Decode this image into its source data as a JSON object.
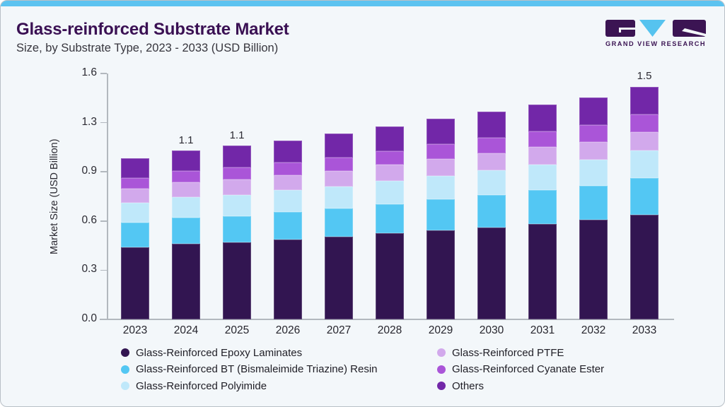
{
  "header": {
    "title": "Glass-reinforced Substrate Market",
    "subtitle": "Size, by Substrate Type, 2023 - 2033 (USD Billion)"
  },
  "logo": {
    "wordmark": "GRAND VIEW RESEARCH",
    "mark_colors": {
      "blocks": "#3b1453",
      "triangle": "#56c3ef"
    }
  },
  "colors": {
    "card_background": "#f3f7fa",
    "accent_bar": "#5cc3f0",
    "title_text": "#3a1053",
    "axis_line": "#b2b8be",
    "tick_text": "#2b2a32"
  },
  "chart_data": {
    "type": "bar",
    "stacked": true,
    "title": "Glass-reinforced Substrate Market Size, by Substrate Type, 2023 - 2033 (USD Billion)",
    "xlabel": "",
    "ylabel": "Market Size (USD Billion)",
    "ylim": [
      0,
      1.6
    ],
    "ytick_labels": [
      "0.0",
      "0.3",
      "0.6",
      "0.9",
      "1.3",
      "1.6"
    ],
    "grid": false,
    "legend_position": "bottom",
    "categories": [
      "2023",
      "2024",
      "2025",
      "2026",
      "2027",
      "2028",
      "2029",
      "2030",
      "2031",
      "2032",
      "2033"
    ],
    "bar_total_labels": [
      "",
      "1.1",
      "1.1",
      "",
      "",
      "",
      "",
      "",
      "",
      "",
      "1.5"
    ],
    "series": [
      {
        "name": "Glass-Reinforced Epoxy Laminates",
        "color": "#321551",
        "values": [
          0.47,
          0.49,
          0.5,
          0.52,
          0.54,
          0.56,
          0.58,
          0.6,
          0.62,
          0.65,
          0.68
        ]
      },
      {
        "name": "Glass-Reinforced BT (Bismaleimide Triazine) Resin",
        "color": "#53c7f3",
        "values": [
          0.16,
          0.17,
          0.17,
          0.18,
          0.18,
          0.19,
          0.2,
          0.21,
          0.22,
          0.22,
          0.24
        ]
      },
      {
        "name": "Glass-Reinforced Polyimide",
        "color": "#bfe8fa",
        "values": [
          0.13,
          0.135,
          0.14,
          0.14,
          0.145,
          0.15,
          0.155,
          0.16,
          0.165,
          0.17,
          0.18
        ]
      },
      {
        "name": "Glass-Reinforced PTFE",
        "color": "#d2a9ec",
        "values": [
          0.09,
          0.095,
          0.1,
          0.1,
          0.1,
          0.105,
          0.11,
          0.11,
          0.115,
          0.115,
          0.12
        ]
      },
      {
        "name": "Glass-Reinforced Cyanate Ester",
        "color": "#aa55d8",
        "values": [
          0.07,
          0.075,
          0.08,
          0.08,
          0.09,
          0.09,
          0.095,
          0.1,
          0.105,
          0.11,
          0.115
        ]
      },
      {
        "name": "Others",
        "color": "#7227a8",
        "values": [
          0.13,
          0.135,
          0.14,
          0.145,
          0.155,
          0.16,
          0.165,
          0.17,
          0.175,
          0.18,
          0.18
        ]
      }
    ]
  }
}
